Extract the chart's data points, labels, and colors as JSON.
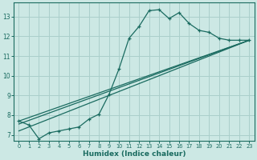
{
  "xlabel": "Humidex (Indice chaleur)",
  "bg_color": "#cce8e4",
  "grid_color": "#aacfcb",
  "line_color": "#1a6b60",
  "xlim": [
    -0.5,
    23.5
  ],
  "ylim": [
    6.7,
    13.7
  ],
  "yticks": [
    7,
    8,
    9,
    10,
    11,
    12,
    13
  ],
  "xticks": [
    0,
    1,
    2,
    3,
    4,
    5,
    6,
    7,
    8,
    9,
    10,
    11,
    12,
    13,
    14,
    15,
    16,
    17,
    18,
    19,
    20,
    21,
    22,
    23
  ],
  "main_series": {
    "x": [
      0,
      1,
      2,
      3,
      4,
      5,
      6,
      7,
      8,
      9,
      10,
      11,
      12,
      13,
      14,
      15,
      16,
      17,
      18,
      19,
      20,
      21,
      22,
      23
    ],
    "y": [
      7.7,
      7.5,
      6.8,
      7.1,
      7.2,
      7.3,
      7.4,
      7.8,
      8.05,
      9.05,
      10.35,
      11.9,
      12.5,
      13.3,
      13.35,
      12.9,
      13.2,
      12.65,
      12.3,
      12.2,
      11.9,
      11.8,
      11.8,
      11.8
    ]
  },
  "straight_lines": [
    {
      "x": [
        0,
        23
      ],
      "y": [
        7.7,
        11.8
      ]
    },
    {
      "x": [
        0,
        23
      ],
      "y": [
        7.55,
        11.8
      ]
    },
    {
      "x": [
        0,
        23
      ],
      "y": [
        7.2,
        11.8
      ]
    }
  ]
}
